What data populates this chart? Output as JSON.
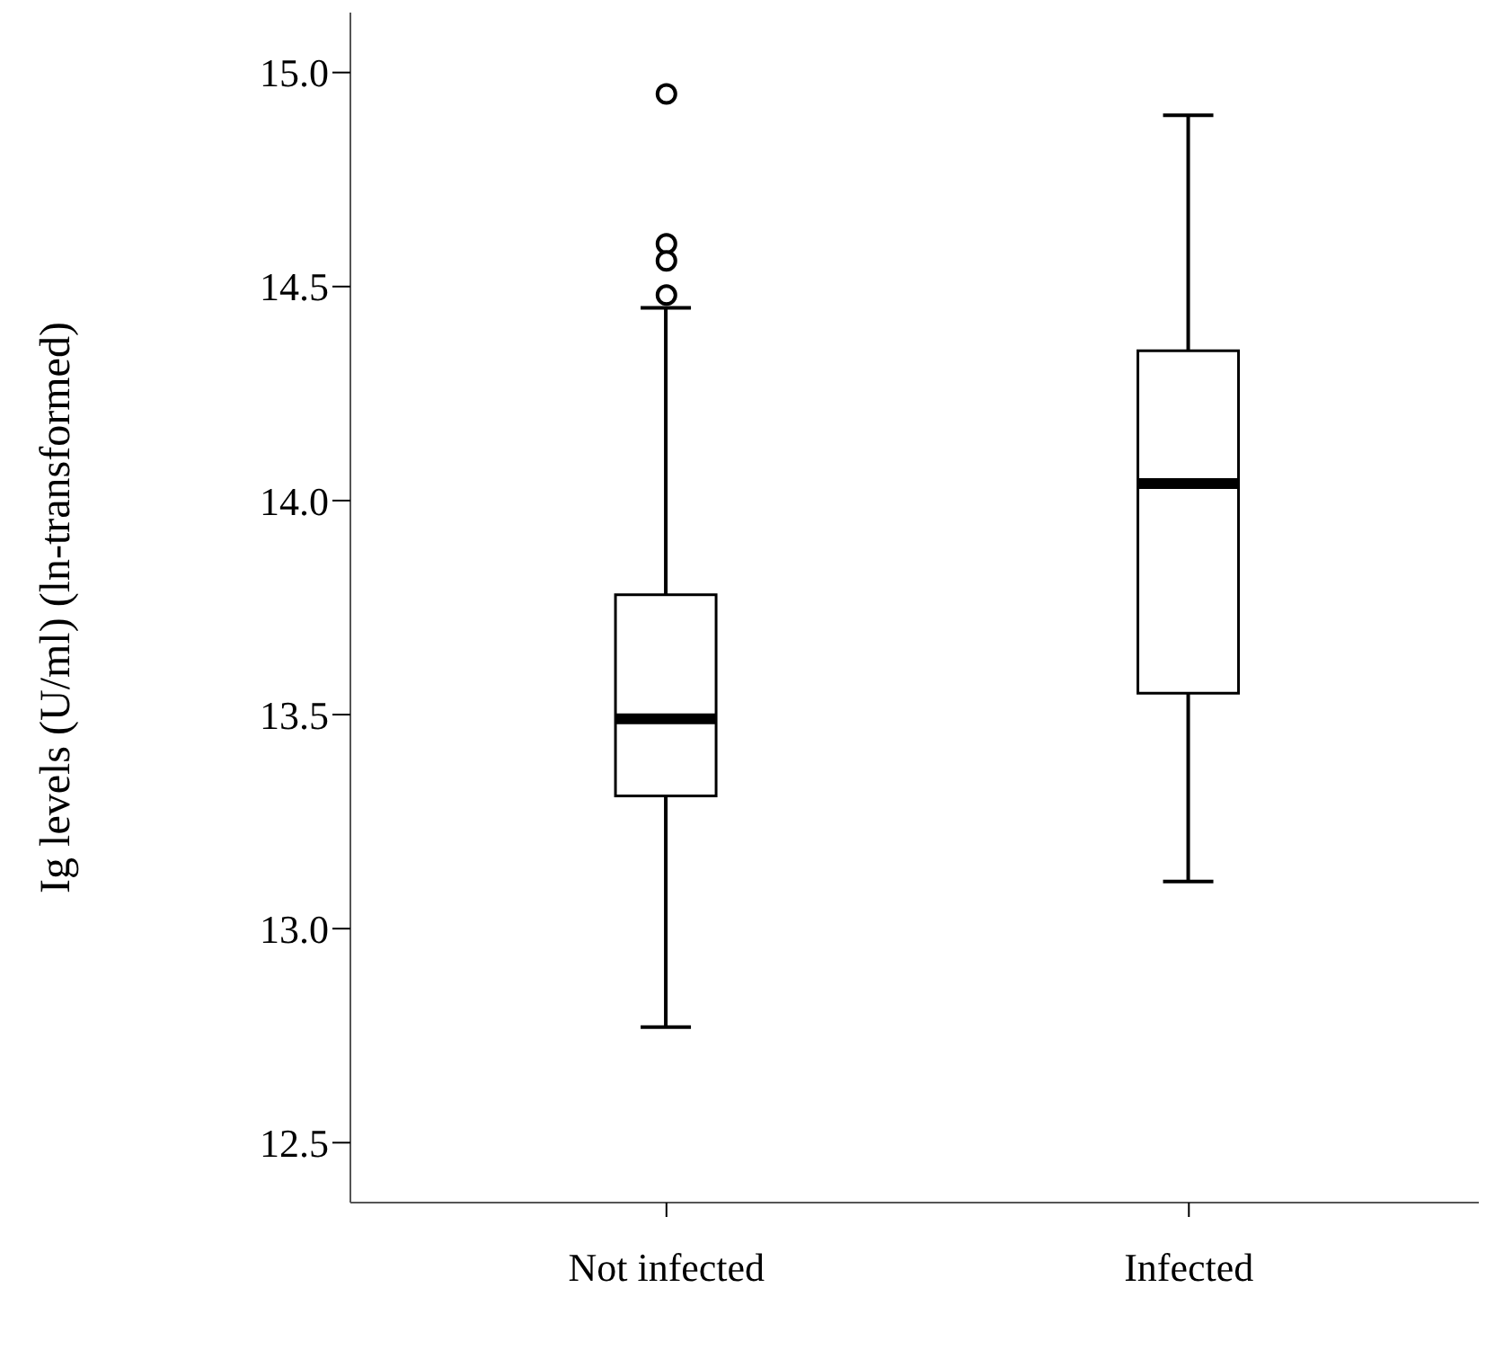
{
  "chart_data": {
    "type": "box",
    "ylabel": "Ig levels (U/ml) (ln-transformed)",
    "categories": [
      "Not infected",
      "Infected"
    ],
    "boxes": [
      {
        "low": 12.77,
        "q1": 13.31,
        "median": 13.49,
        "q3": 13.78,
        "high": 14.45,
        "outliers": [
          14.95,
          14.6,
          14.56,
          14.48
        ]
      },
      {
        "low": 13.11,
        "q1": 13.55,
        "median": 14.04,
        "q3": 14.35,
        "high": 14.9
      }
    ],
    "ylim": [
      12.36,
      15.14
    ],
    "yticks": [
      {
        "value": 12.5,
        "label": "12.5"
      },
      {
        "value": 13,
        "label": "13.0"
      },
      {
        "value": 13.5,
        "label": "13.5"
      },
      {
        "value": 14,
        "label": "14.0"
      },
      {
        "value": 14.5,
        "label": "14.5"
      },
      {
        "value": 15,
        "label": "15.0"
      }
    ],
    "grid": false,
    "legend": false
  }
}
